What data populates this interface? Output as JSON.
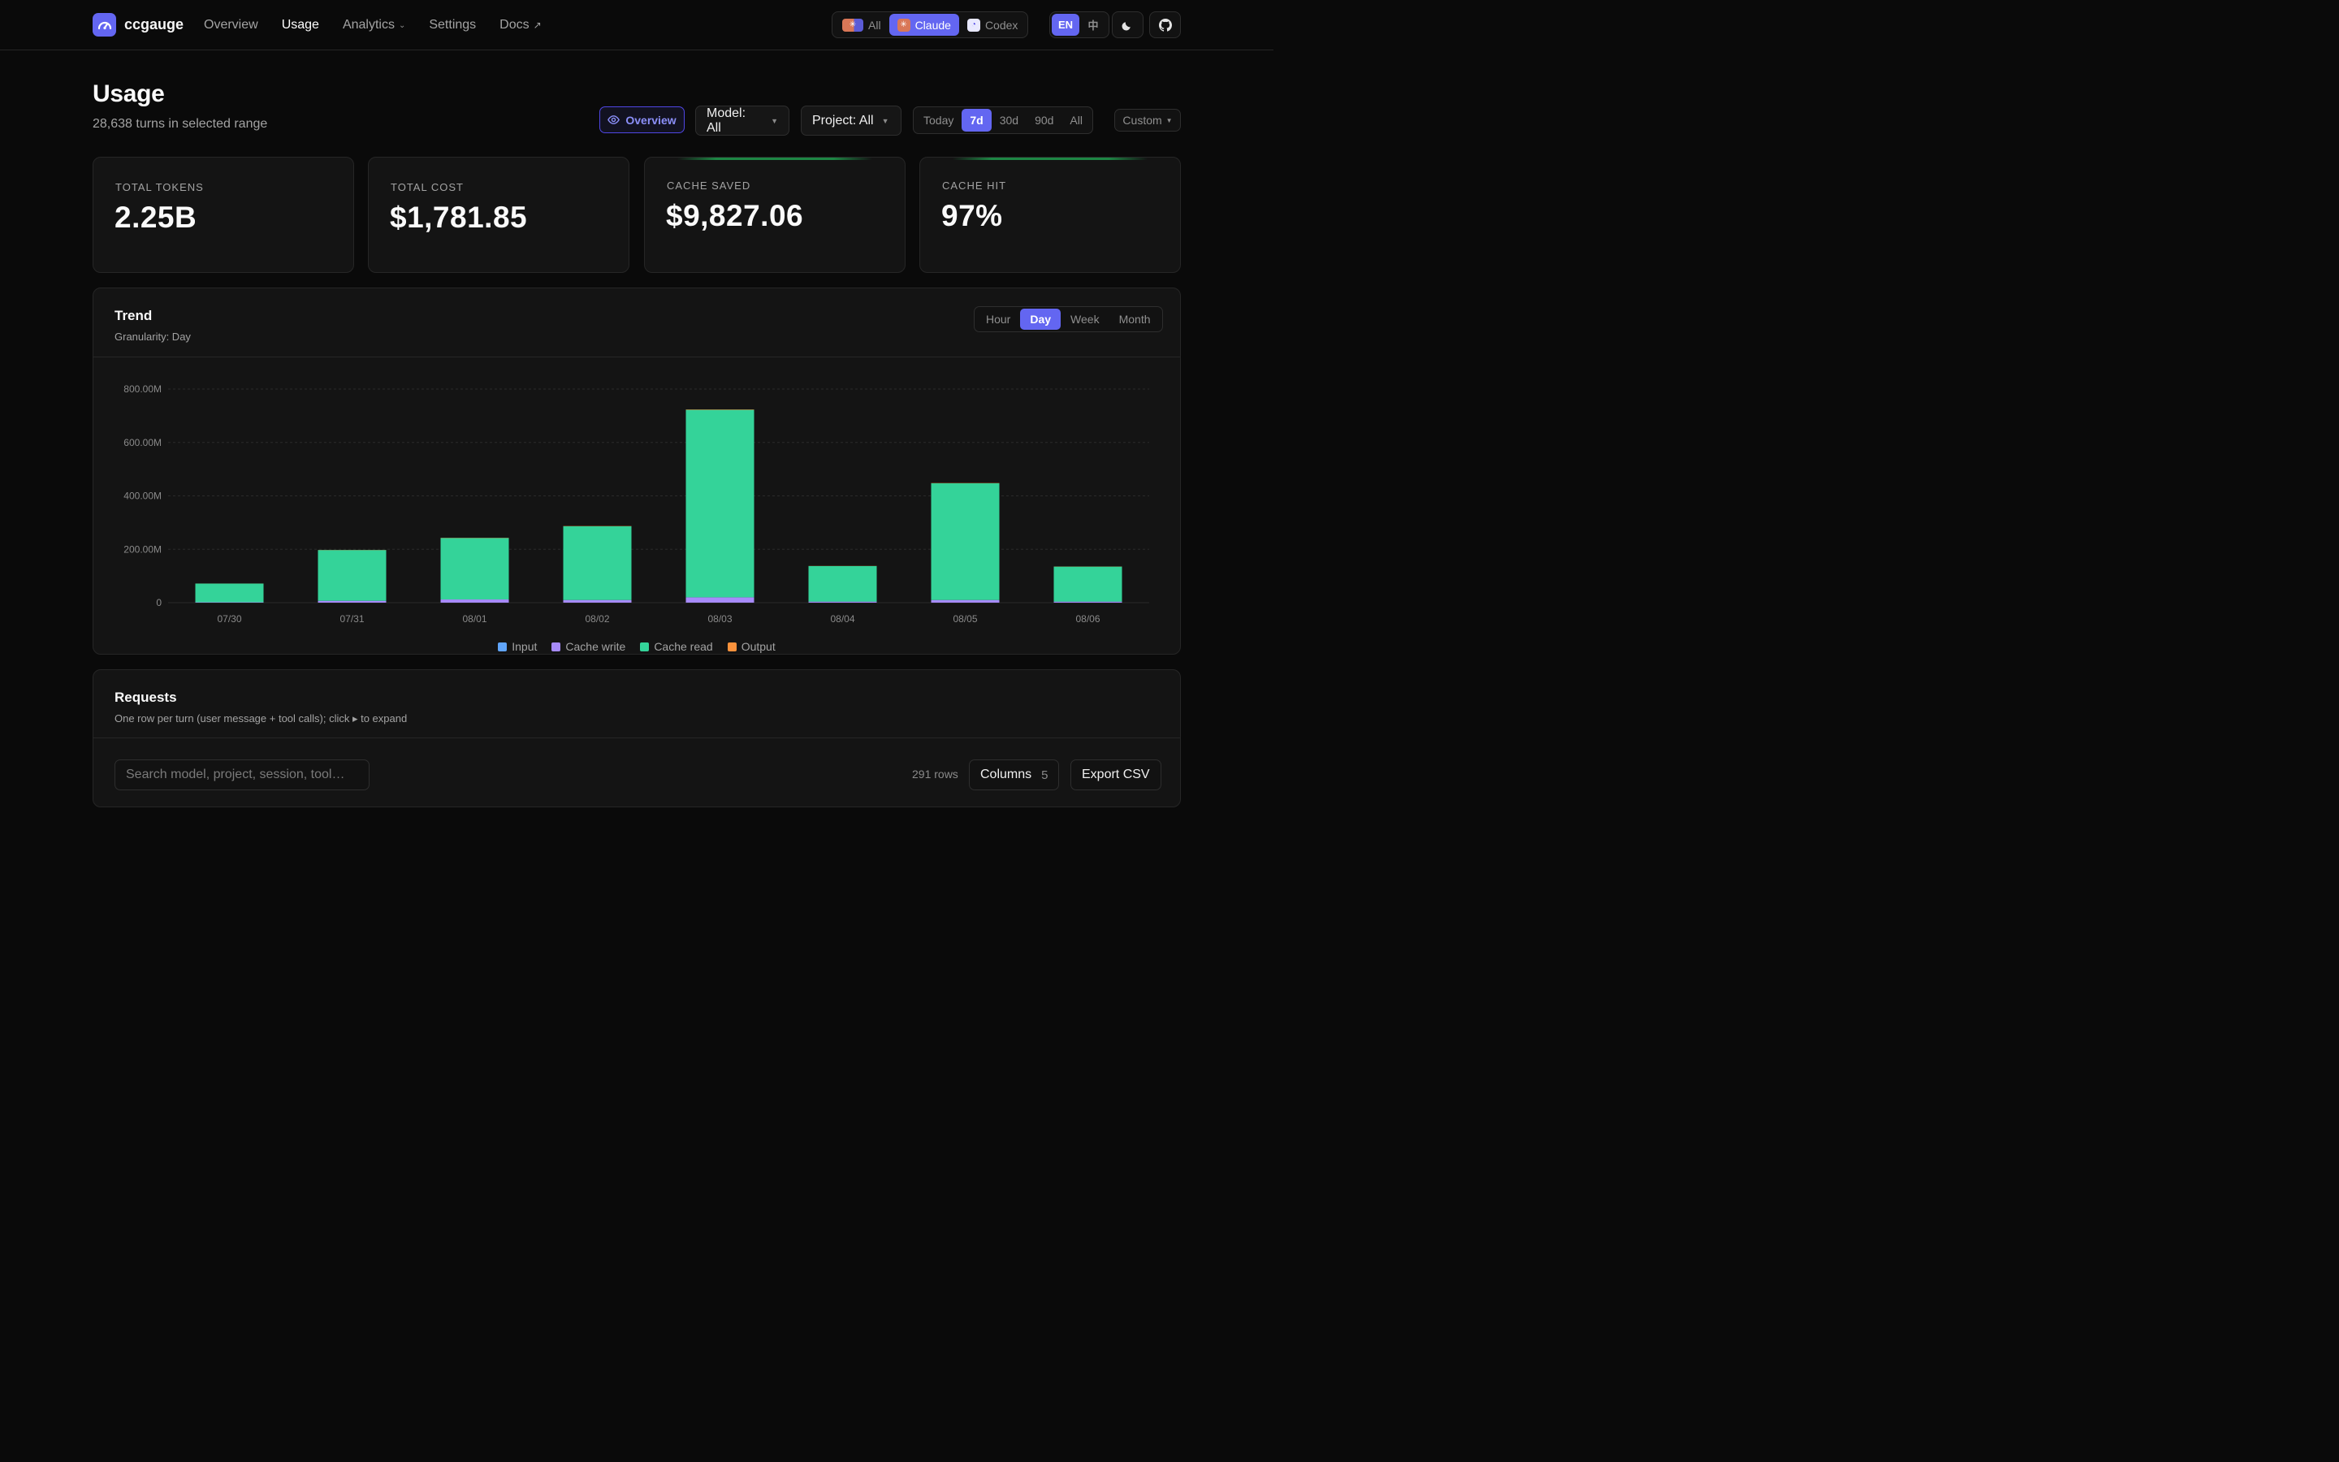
{
  "app": {
    "name": "ccgauge",
    "nav": [
      {
        "label": "Overview"
      },
      {
        "label": "Usage"
      },
      {
        "label": "Analytics"
      },
      {
        "label": "Settings"
      },
      {
        "label": "Docs"
      }
    ],
    "active_nav": "Usage",
    "tools": [
      {
        "label": "All"
      },
      {
        "label": "Claude"
      },
      {
        "label": "Codex"
      }
    ],
    "active_tool": "Claude",
    "languages": [
      {
        "label": "EN"
      },
      {
        "label": "中"
      }
    ],
    "active_language": "EN",
    "colors": {
      "accent": "#6366f1"
    }
  },
  "header": {
    "title": "Usage",
    "subtitle": "28,638 turns in selected range",
    "overview_label": "Overview",
    "model_filter": "Model: All",
    "project_filter": "Project: All",
    "ranges": [
      {
        "label": "Today"
      },
      {
        "label": "7d"
      },
      {
        "label": "30d"
      },
      {
        "label": "90d"
      },
      {
        "label": "All"
      }
    ],
    "active_range": "7d",
    "custom_label": "Custom"
  },
  "stats": [
    {
      "label": "TOTAL TOKENS",
      "value": "2.25B"
    },
    {
      "label": "TOTAL COST",
      "value": "$1,781.85"
    },
    {
      "label": "CACHE SAVED",
      "value": "$9,827.06"
    },
    {
      "label": "CACHE HIT",
      "value": "97%"
    }
  ],
  "trend": {
    "title": "Trend",
    "subtitle": "Granularity: Day",
    "granularities": [
      {
        "label": "Hour"
      },
      {
        "label": "Day"
      },
      {
        "label": "Week"
      },
      {
        "label": "Month"
      }
    ],
    "active_granularity": "Day"
  },
  "chart_data": {
    "type": "bar",
    "stacked": true,
    "categories": [
      "07/30",
      "07/31",
      "08/01",
      "08/02",
      "08/03",
      "08/04",
      "08/05",
      "08/06"
    ],
    "y_ticks": [
      0,
      200000000,
      400000000,
      600000000,
      800000000
    ],
    "y_tick_labels": [
      "0",
      "200.00M",
      "400.00M",
      "600.00M",
      "800.00M"
    ],
    "ylim": [
      0,
      800000000
    ],
    "grid": true,
    "legend_position": "bottom-center",
    "series": [
      {
        "name": "Input",
        "color": "#60a5fa",
        "values": [
          20000,
          60000,
          80000,
          70000,
          120000,
          50000,
          60000,
          40000
        ]
      },
      {
        "name": "Cache write",
        "color": "#a78bfa",
        "values": [
          1500000,
          7000000,
          12000000,
          10000000,
          20000000,
          4000000,
          10000000,
          4000000
        ]
      },
      {
        "name": "Cache read",
        "color": "#34d399",
        "values": [
          70000000,
          190000000,
          230000000,
          276000000,
          702000000,
          133000000,
          437000000,
          131000000
        ]
      },
      {
        "name": "Output",
        "color": "#fb923c",
        "values": [
          200000,
          600000,
          800000,
          900000,
          1500000,
          500000,
          900000,
          500000
        ]
      }
    ]
  },
  "requests": {
    "title": "Requests",
    "subtitle": "One row per turn (user message + tool calls); click ▸ to expand",
    "search_placeholder": "Search model, project, session, tool…",
    "search_value": "",
    "rows_count": "291 rows",
    "columns_label": "Columns",
    "columns_count": "5",
    "export_label": "Export CSV"
  }
}
